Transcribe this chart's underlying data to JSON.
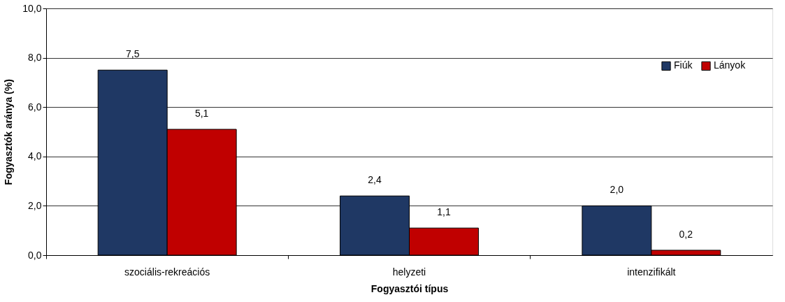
{
  "chart_data": {
    "type": "bar",
    "xlabel": "Fogyasztói típus",
    "ylabel": "Fogyasztók aránya (%)",
    "categories": [
      "szociális-rekreációs",
      "helyzeti",
      "intenzifikált"
    ],
    "series": [
      {
        "name": "Fiúk",
        "color": "#1f3864",
        "values": [
          7.5,
          2.4,
          2.0
        ],
        "value_labels": [
          "7,5",
          "2,4",
          "2,0"
        ]
      },
      {
        "name": "Lányok",
        "color": "#c00000",
        "values": [
          5.1,
          1.1,
          0.2
        ],
        "value_labels": [
          "5,1",
          "1,1",
          "0,2"
        ]
      }
    ],
    "ylim": [
      0,
      10
    ],
    "yticks": [
      {
        "value": 0,
        "label": "0,0"
      },
      {
        "value": 2,
        "label": "2,0"
      },
      {
        "value": 4,
        "label": "4,0"
      },
      {
        "value": 6,
        "label": "6,0"
      },
      {
        "value": 8,
        "label": "8,0"
      },
      {
        "value": 10,
        "label": "10,0"
      }
    ],
    "grid": "y",
    "legend": "top right"
  }
}
